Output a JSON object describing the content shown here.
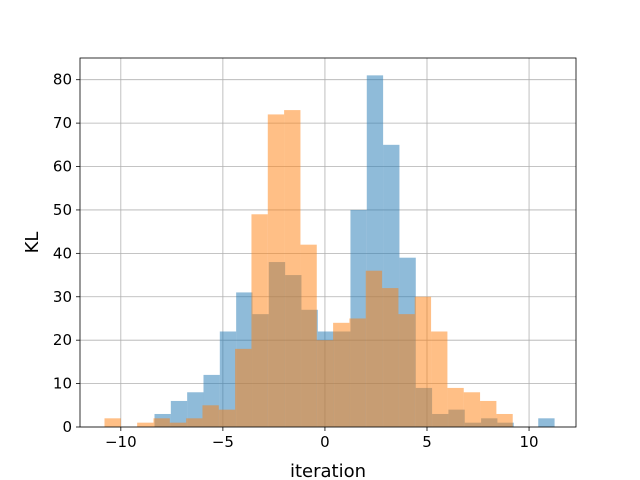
{
  "chart_data": {
    "type": "histogram",
    "title": "",
    "xlabel": "iteration",
    "ylabel": "KL",
    "xlim": [
      -12.0,
      12.3
    ],
    "ylim": [
      0,
      85
    ],
    "xticks": [
      -10,
      -5,
      0,
      5,
      10
    ],
    "xtick_labels": [
      "−10",
      "−5",
      "0",
      "5",
      "10"
    ],
    "yticks": [
      0,
      10,
      20,
      30,
      40,
      50,
      60,
      70,
      80
    ],
    "ytick_labels": [
      "0",
      "10",
      "20",
      "30",
      "40",
      "50",
      "60",
      "70",
      "80"
    ],
    "grid": true,
    "legend": "none",
    "series": [
      {
        "color": "#1f77b4",
        "opacity": 0.5,
        "bins": [
          {
            "x0": -8.35,
            "x1": -7.55,
            "count": 3
          },
          {
            "x0": -7.55,
            "x1": -6.75,
            "count": 6
          },
          {
            "x0": -6.75,
            "x1": -5.95,
            "count": 8
          },
          {
            "x0": -5.95,
            "x1": -5.15,
            "count": 12
          },
          {
            "x0": -5.15,
            "x1": -4.35,
            "count": 22
          },
          {
            "x0": -4.35,
            "x1": -3.55,
            "count": 31
          },
          {
            "x0": -3.55,
            "x1": -2.75,
            "count": 26
          },
          {
            "x0": -2.75,
            "x1": -1.95,
            "count": 38
          },
          {
            "x0": -1.95,
            "x1": -1.15,
            "count": 35
          },
          {
            "x0": -1.15,
            "x1": -0.35,
            "count": 27
          },
          {
            "x0": -0.35,
            "x1": 0.45,
            "count": 22
          },
          {
            "x0": 0.45,
            "x1": 1.25,
            "count": 22
          },
          {
            "x0": 1.25,
            "x1": 2.05,
            "count": 50
          },
          {
            "x0": 2.05,
            "x1": 2.85,
            "count": 81
          },
          {
            "x0": 2.85,
            "x1": 3.65,
            "count": 65
          },
          {
            "x0": 3.65,
            "x1": 4.45,
            "count": 39
          },
          {
            "x0": 4.45,
            "x1": 5.25,
            "count": 9
          },
          {
            "x0": 5.25,
            "x1": 6.05,
            "count": 3
          },
          {
            "x0": 6.05,
            "x1": 6.85,
            "count": 4
          },
          {
            "x0": 6.85,
            "x1": 7.65,
            "count": 1
          },
          {
            "x0": 7.65,
            "x1": 8.45,
            "count": 2
          },
          {
            "x0": 8.45,
            "x1": 9.25,
            "count": 1
          },
          {
            "x0": 10.45,
            "x1": 11.25,
            "count": 2
          }
        ]
      },
      {
        "color": "#ff7f0e",
        "opacity": 0.5,
        "bins": [
          {
            "x0": -10.8,
            "x1": -10.0,
            "count": 2
          },
          {
            "x0": -9.2,
            "x1": -8.4,
            "count": 1
          },
          {
            "x0": -8.4,
            "x1": -7.6,
            "count": 2
          },
          {
            "x0": -7.6,
            "x1": -6.8,
            "count": 1
          },
          {
            "x0": -6.8,
            "x1": -6.0,
            "count": 2
          },
          {
            "x0": -6.0,
            "x1": -5.2,
            "count": 5
          },
          {
            "x0": -5.2,
            "x1": -4.4,
            "count": 4
          },
          {
            "x0": -4.4,
            "x1": -3.6,
            "count": 18
          },
          {
            "x0": -3.6,
            "x1": -2.8,
            "count": 49
          },
          {
            "x0": -2.8,
            "x1": -2.0,
            "count": 72
          },
          {
            "x0": -2.0,
            "x1": -1.2,
            "count": 73
          },
          {
            "x0": -1.2,
            "x1": -0.4,
            "count": 42
          },
          {
            "x0": -0.4,
            "x1": 0.4,
            "count": 20
          },
          {
            "x0": 0.4,
            "x1": 1.2,
            "count": 24
          },
          {
            "x0": 1.2,
            "x1": 2.0,
            "count": 25
          },
          {
            "x0": 2.0,
            "x1": 2.8,
            "count": 36
          },
          {
            "x0": 2.8,
            "x1": 3.6,
            "count": 32
          },
          {
            "x0": 3.6,
            "x1": 4.4,
            "count": 26
          },
          {
            "x0": 4.4,
            "x1": 5.2,
            "count": 30
          },
          {
            "x0": 5.2,
            "x1": 6.0,
            "count": 22
          },
          {
            "x0": 6.0,
            "x1": 6.8,
            "count": 9
          },
          {
            "x0": 6.8,
            "x1": 7.6,
            "count": 8
          },
          {
            "x0": 7.6,
            "x1": 8.4,
            "count": 6
          },
          {
            "x0": 8.4,
            "x1": 9.2,
            "count": 3
          }
        ]
      }
    ]
  }
}
